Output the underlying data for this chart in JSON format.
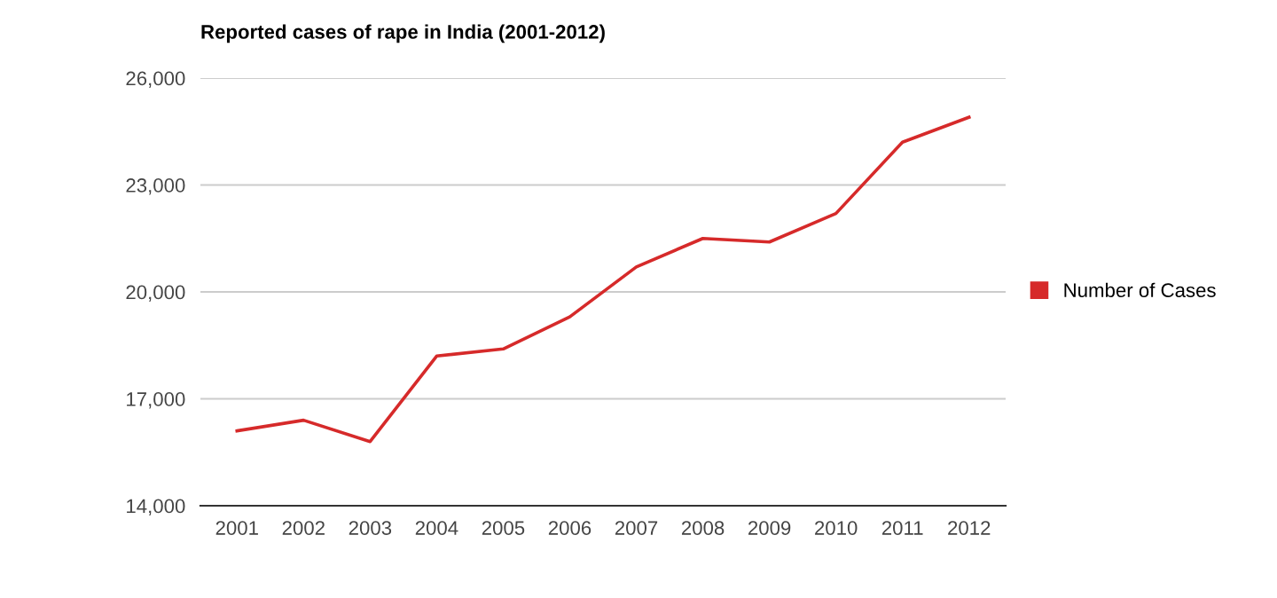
{
  "chart_data": {
    "type": "line",
    "title": "Reported cases of rape in India (2001-2012)",
    "categories": [
      "2001",
      "2002",
      "2003",
      "2004",
      "2005",
      "2006",
      "2007",
      "2008",
      "2009",
      "2010",
      "2011",
      "2012"
    ],
    "series": [
      {
        "name": "Number of Cases",
        "color": "#d62a2a",
        "values": [
          16100,
          16400,
          15800,
          18200,
          18400,
          19300,
          20700,
          21500,
          21400,
          22200,
          24200,
          24900
        ]
      }
    ],
    "ylim": [
      14000,
      26000
    ],
    "yticks": [
      {
        "value": 14000,
        "label": "14,000"
      },
      {
        "value": 17000,
        "label": "17,000"
      },
      {
        "value": 20000,
        "label": "20,000"
      },
      {
        "value": 23000,
        "label": "23,000"
      },
      {
        "value": 26000,
        "label": "26,000"
      }
    ],
    "grid": "y",
    "legend": "right",
    "marker": "none",
    "line_style": "solid"
  }
}
